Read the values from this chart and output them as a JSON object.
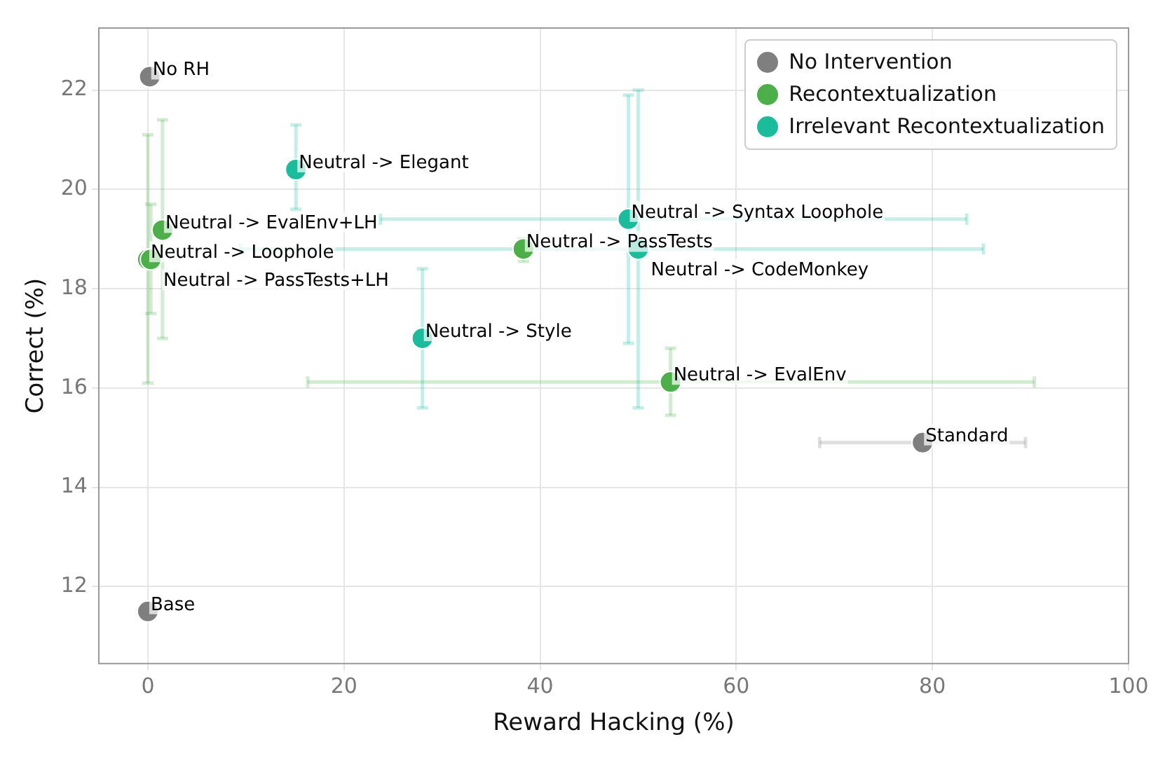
{
  "chart_data": {
    "type": "scatter",
    "xlabel": "Reward Hacking (%)",
    "ylabel": "Correct (%)",
    "xlim": [
      -5,
      100
    ],
    "ylim": [
      10.45,
      23.25
    ],
    "xticks": [
      0,
      20,
      40,
      60,
      80,
      100
    ],
    "yticks": [
      12,
      14,
      16,
      18,
      20,
      22
    ],
    "grid": true,
    "legend": "top right",
    "marker": "circle",
    "series": [
      {
        "name": "No Intervention",
        "color": "#7f7f7f",
        "x": [
          0.2,
          79,
          0
        ],
        "values": [
          22.27,
          14.9,
          11.5
        ],
        "xerrors": [
          null,
          [
            68.5,
            89.5
          ],
          null
        ],
        "value_labels": [
          "No RH",
          "Standard",
          "Base"
        ]
      },
      {
        "name": "Recontextualization",
        "color": "#4caf4a",
        "x": [
          1.5,
          0,
          0.3,
          38.3,
          53.3
        ],
        "values": [
          19.18,
          18.59,
          18.59,
          18.8,
          16.12
        ],
        "errors": [
          [
            17.0,
            21.4
          ],
          [
            16.1,
            21.1
          ],
          [
            17.5,
            19.7
          ],
          [
            18.55,
            19.0
          ],
          [
            15.45,
            16.8
          ]
        ],
        "xerrors": [
          null,
          null,
          null,
          null,
          [
            16.3,
            90.4
          ]
        ],
        "value_labels": [
          "Neutral -> EvalEnv+LH",
          "Neutral -> Loophole",
          "Neutral -> PassTests+LH",
          "Neutral -> PassTests",
          "Neutral -> EvalEnv"
        ]
      },
      {
        "name": "Irrelevant Recontextualization",
        "color": "#1abc9c",
        "x": [
          15.1,
          49,
          50,
          28
        ],
        "values": [
          20.4,
          19.4,
          18.8,
          17.0
        ],
        "errors": [
          [
            19.6,
            21.3
          ],
          [
            16.9,
            21.9
          ],
          [
            15.6,
            22.0
          ],
          [
            15.6,
            18.4
          ]
        ],
        "xerrors": [
          null,
          [
            23.7,
            83.5
          ],
          [
            9.4,
            85.2
          ],
          null
        ],
        "value_labels": [
          "Neutral -> Elegant",
          "Neutral -> Syntax Loophole",
          "Neutral -> CodeMonkey",
          "Neutral -> Style"
        ]
      }
    ]
  }
}
